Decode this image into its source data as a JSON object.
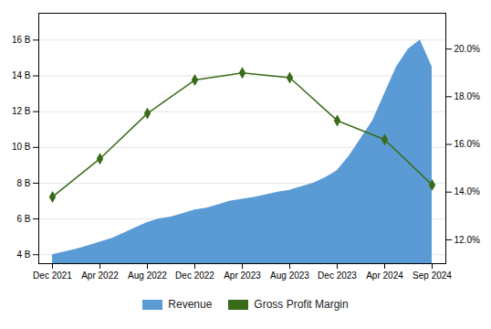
{
  "chart_data": {
    "type": "area",
    "categories": [
      "Dec 2021",
      null,
      null,
      null,
      "Apr 2022",
      null,
      null,
      null,
      "Aug 2022",
      null,
      null,
      null,
      "Dec 2022",
      null,
      null,
      null,
      "Apr 2023",
      null,
      null,
      null,
      "Aug 2023",
      null,
      null,
      null,
      "Dec 2023",
      null,
      null,
      null,
      "Apr 2024",
      null,
      null,
      null,
      "Sep 2024"
    ],
    "series": [
      {
        "name": "Revenue",
        "type": "area",
        "color": "#5B9BD5",
        "values": [
          4.0,
          4.15,
          4.3,
          4.5,
          4.7,
          4.9,
          5.2,
          5.5,
          5.8,
          6.0,
          6.1,
          6.3,
          6.5,
          6.6,
          6.8,
          7.0,
          7.1,
          7.2,
          7.35,
          7.5,
          7.6,
          7.8,
          8.0,
          8.3,
          8.7,
          9.5,
          10.5,
          11.5,
          13.0,
          14.5,
          15.5,
          16.0,
          14.5
        ]
      },
      {
        "name": "Gross Profit Margin",
        "type": "line",
        "axis": "y2",
        "color": "#3a6b1a",
        "marker": "diamond",
        "values": [
          13.8,
          null,
          null,
          null,
          15.4,
          null,
          null,
          null,
          17.3,
          null,
          null,
          null,
          18.7,
          null,
          null,
          null,
          19.0,
          null,
          null,
          null,
          18.8,
          null,
          null,
          null,
          17.0,
          null,
          null,
          null,
          16.2,
          null,
          null,
          null,
          14.3
        ]
      }
    ],
    "ylim": [
      3.5,
      17.5
    ],
    "yticks": [
      {
        "value": 4,
        "label": "4 B"
      },
      {
        "value": 6,
        "label": "6 B"
      },
      {
        "value": 8,
        "label": "8 B"
      },
      {
        "value": 10,
        "label": "10 B"
      },
      {
        "value": 12,
        "label": "12 B"
      },
      {
        "value": 14,
        "label": "14 B"
      },
      {
        "value": 16,
        "label": "16 B"
      }
    ],
    "y2lim": [
      11.0,
      21.5
    ],
    "y2ticks": [
      {
        "value": 12,
        "label": "12.0%"
      },
      {
        "value": 14,
        "label": "14.0%"
      },
      {
        "value": 16,
        "label": "16.0%"
      },
      {
        "value": 18,
        "label": "18.0%"
      },
      {
        "value": 20,
        "label": "20.0%"
      }
    ],
    "grid": true,
    "legend": "bottom"
  }
}
